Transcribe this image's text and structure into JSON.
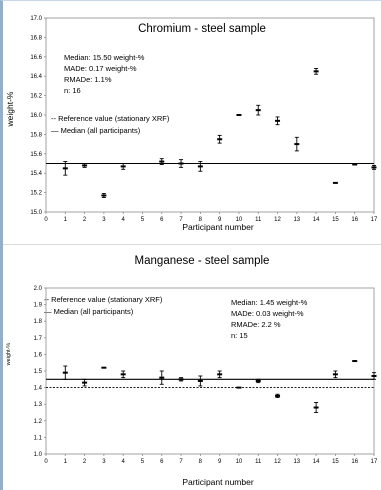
{
  "chart_data": [
    {
      "type": "scatter",
      "title": "Chromium - steel sample",
      "xlabel": "Participant number",
      "ylabel": "weight-%",
      "xlim": [
        0,
        17
      ],
      "ylim": [
        15.0,
        17.0
      ],
      "yticks": [
        "15.0",
        "15.2",
        "15.4",
        "15.6",
        "15.8",
        "16.0",
        "16.2",
        "16.4",
        "16.6",
        "16.8",
        "17.0"
      ],
      "xticks": [
        "0",
        "1",
        "2",
        "3",
        "4",
        "5",
        "6",
        "7",
        "8",
        "9",
        "10",
        "11",
        "12",
        "13",
        "14",
        "15",
        "16",
        "17"
      ],
      "stats": {
        "median": "Median: 15.50 weight-%",
        "made": "MADe:   0.17 weight-%",
        "rmade": "RMADe:  1.1%",
        "n": "n: 16"
      },
      "legend": [
        "-- Reference value (stationary XRF)",
        "— Median (all participants)"
      ],
      "reference_value": 15.5,
      "median": 15.5,
      "series": [
        {
          "x": [
            1,
            2,
            3,
            4,
            6,
            7,
            8,
            9,
            10,
            11,
            12,
            13,
            14,
            15,
            16,
            17
          ],
          "y": [
            15.45,
            15.48,
            15.17,
            15.47,
            15.52,
            15.5,
            15.47,
            15.75,
            16.0,
            16.05,
            15.94,
            15.7,
            16.45,
            15.3,
            15.49,
            15.46
          ],
          "err": [
            0.07,
            0.02,
            0.02,
            0.03,
            0.03,
            0.04,
            0.05,
            0.04,
            0.0,
            0.05,
            0.04,
            0.07,
            0.03,
            0.0,
            0.0,
            0.02
          ]
        }
      ]
    },
    {
      "type": "scatter",
      "title": "Manganese - steel sample",
      "xlabel": "Participant number",
      "ylabel": "weight-%",
      "xlim": [
        0,
        17
      ],
      "ylim": [
        1.0,
        2.0
      ],
      "yticks": [
        "1.0",
        "1.1",
        "1.2",
        "1.3",
        "1.4",
        "1.5",
        "1.6",
        "1.7",
        "1.8",
        "1.9",
        "2.0"
      ],
      "xticks": [
        "0",
        "1",
        "2",
        "3",
        "4",
        "5",
        "6",
        "7",
        "8",
        "9",
        "10",
        "11",
        "12",
        "13",
        "14",
        "15",
        "16",
        "17"
      ],
      "stats": {
        "median": "Median:  1.45 weight-%",
        "made": "MADe:    0.03 weight-%",
        "rmade": "RMADe:  2.2 %",
        "n": "n: 15"
      },
      "legend": [
        "-- Reference value (stationary XRF)",
        "— Median (all participants)"
      ],
      "reference_value": 1.4,
      "median": 1.45,
      "series": [
        {
          "x": [
            1,
            2,
            3,
            4,
            6,
            7,
            8,
            9,
            10,
            11,
            12,
            14,
            15,
            16,
            17
          ],
          "y": [
            1.49,
            1.43,
            1.52,
            1.48,
            1.46,
            1.45,
            1.44,
            1.48,
            1.4,
            1.44,
            1.35,
            1.28,
            1.48,
            1.56,
            1.47
          ],
          "err": [
            0.04,
            0.02,
            0.0,
            0.02,
            0.04,
            0.01,
            0.03,
            0.02,
            0.0,
            0.01,
            0.01,
            0.03,
            0.02,
            0.0,
            0.02
          ]
        }
      ]
    }
  ]
}
